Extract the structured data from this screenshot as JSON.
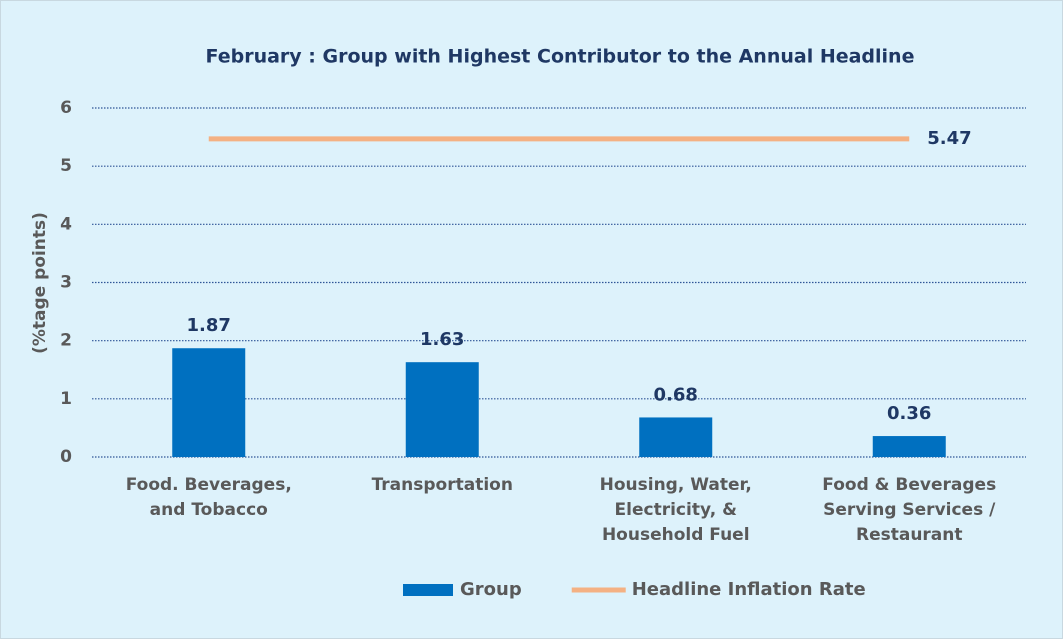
{
  "chart_data": {
    "type": "bar_line",
    "title": "February : Group with Highest Contributor to the Annual  Headline",
    "y_label": "(%tage points)",
    "categories": [
      "Food. Beverages,\nand Tobacco",
      "Transportation",
      "Housing, Water,\nElectricity, &\nHousehold Fuel",
      "Food & Beverages\nServing Services /\nRestaurant"
    ],
    "series": [
      {
        "name": "Group",
        "type": "bar",
        "color": "#0070c0",
        "values": [
          1.87,
          1.63,
          0.68,
          0.36
        ]
      },
      {
        "name": "Headline Inflation Rate",
        "type": "line",
        "color": "#f4b183",
        "values": [
          5.47,
          5.47,
          5.47,
          5.47
        ]
      }
    ],
    "ylim": [
      0,
      6
    ],
    "yticks": [
      0,
      1,
      2,
      3,
      4,
      5,
      6
    ],
    "grid": true,
    "legend": "bottom"
  }
}
